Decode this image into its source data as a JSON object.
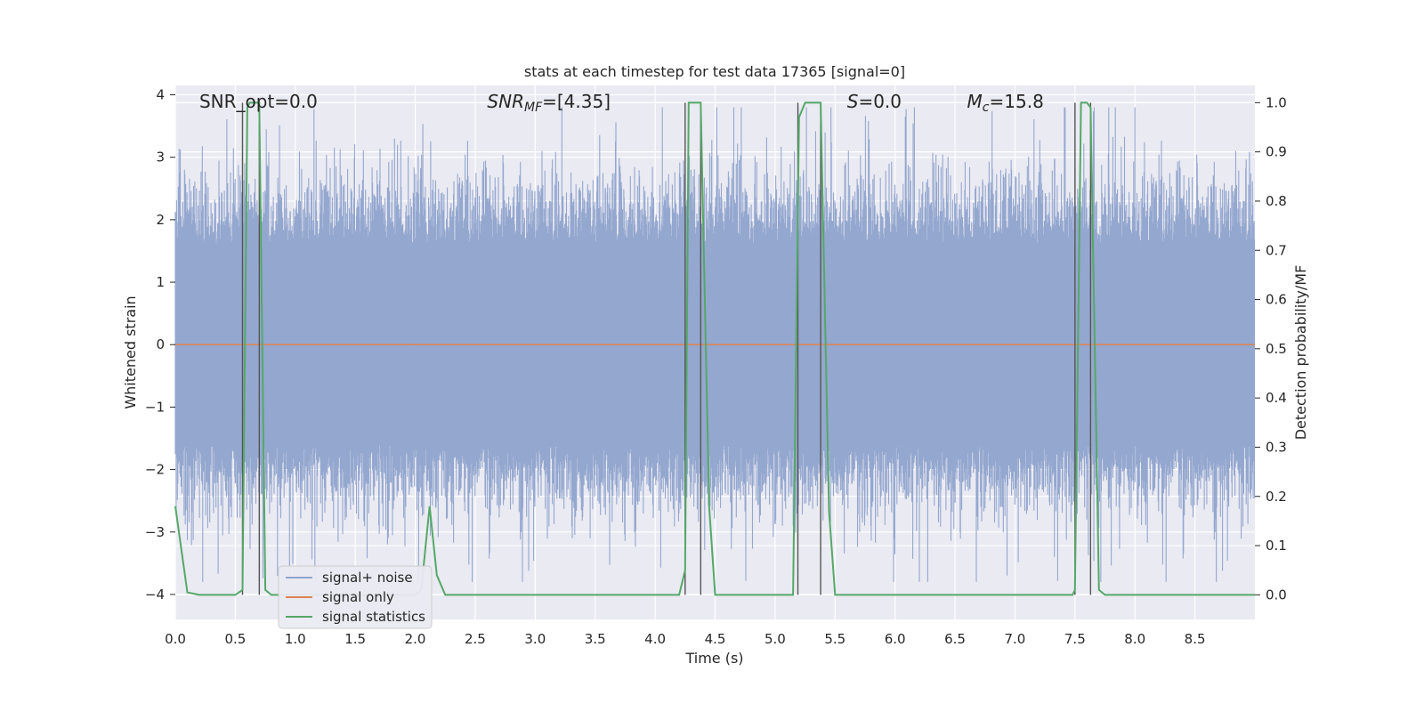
{
  "chart_data": {
    "type": "line",
    "title": "stats at each timestep for test data 17365 [signal=0]",
    "xlabel": "Time (s)",
    "ylabel_left": "Whitened strain",
    "ylabel_right": "Detection probability/MF",
    "xlim": [
      0,
      9.0
    ],
    "ylim_left": [
      -4.4,
      4.15
    ],
    "ylim_right": [
      -0.05,
      1.035
    ],
    "x_ticks": [
      "0.0",
      "0.5",
      "1.0",
      "1.5",
      "2.0",
      "2.5",
      "3.0",
      "3.5",
      "4.0",
      "4.5",
      "5.0",
      "5.5",
      "6.0",
      "6.5",
      "7.0",
      "7.5",
      "8.0",
      "8.5"
    ],
    "y_ticks_left": [
      "4",
      "3",
      "2",
      "1",
      "0",
      "−1",
      "−2",
      "−3",
      "−4"
    ],
    "y_ticks_right": [
      "1.0",
      "0.9",
      "0.8",
      "0.7",
      "0.6",
      "0.5",
      "0.4",
      "0.3",
      "0.2",
      "0.1",
      "0.0"
    ],
    "grid": true,
    "legend_position": "lower-left",
    "annotations": [
      {
        "text": "SNR_opt=0.0",
        "x": 0.2
      },
      {
        "base": "SNR",
        "sub": "MF",
        "rest": "=[4.35]",
        "x": 2.6
      },
      {
        "base": "S",
        "sub": "",
        "rest": "=0.0",
        "x": 5.6
      },
      {
        "base": "M",
        "sub": "c",
        "rest": "=15.8",
        "x": 6.6
      }
    ],
    "series": [
      {
        "name": "signal+ noise",
        "color": "#8fa3cc",
        "kind": "noise",
        "amplitude_core": 1.6,
        "amplitude_peak": 3.8
      },
      {
        "name": "signal only",
        "color": "#dd8452",
        "values_constant": 0.0
      },
      {
        "name": "signal statistics",
        "color": "#55a868",
        "x": [
          0.0,
          0.1,
          0.2,
          0.5,
          0.56,
          0.6,
          0.62,
          0.7,
          0.75,
          0.8,
          0.9,
          1.0,
          1.5,
          2.0,
          2.05,
          2.12,
          2.18,
          2.25,
          2.3,
          3.0,
          4.0,
          4.2,
          4.25,
          4.28,
          4.32,
          4.38,
          4.45,
          4.5,
          5.0,
          5.15,
          5.2,
          5.25,
          5.38,
          5.45,
          5.5,
          6.0,
          7.0,
          7.48,
          7.5,
          7.55,
          7.6,
          7.63,
          7.7,
          7.75,
          8.0,
          9.0
        ],
        "values": [
          0.18,
          0.005,
          0.0,
          0.0,
          0.01,
          0.99,
          1.0,
          1.0,
          0.01,
          0.0,
          0.0,
          0.0,
          0.0,
          0.0,
          0.01,
          0.18,
          0.04,
          0.0,
          0.0,
          0.0,
          0.0,
          0.0,
          0.05,
          1.0,
          1.0,
          1.0,
          0.18,
          0.0,
          0.0,
          0.0,
          0.97,
          1.0,
          1.0,
          0.17,
          0.0,
          0.0,
          0.0,
          0.0,
          0.01,
          1.0,
          1.0,
          0.99,
          0.01,
          0.0,
          0.0,
          0.0
        ]
      },
      {
        "name": "",
        "color": "#555555",
        "kind": "vlines",
        "x": [
          0.56,
          0.7,
          4.25,
          4.38,
          5.19,
          5.38,
          7.5,
          7.63
        ]
      }
    ]
  }
}
